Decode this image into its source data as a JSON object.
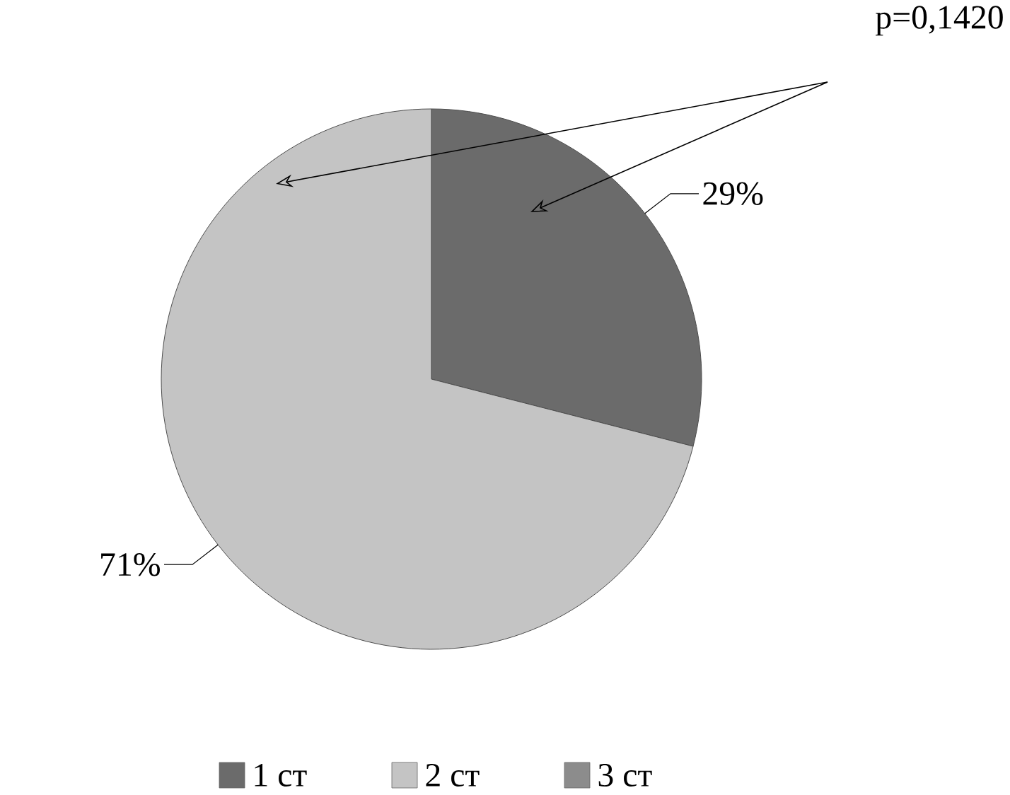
{
  "chart_data": {
    "type": "pie",
    "categories": [
      "1 ст",
      "2 ст",
      "3 ст"
    ],
    "values": [
      29,
      71,
      0
    ],
    "colors": [
      "#6b6b6b",
      "#c4c4c4",
      "#8c8c8c"
    ],
    "value_labels": [
      "29%",
      "71%",
      null
    ],
    "annotations": [
      "p=0,1420"
    ],
    "legend": "bottom"
  }
}
